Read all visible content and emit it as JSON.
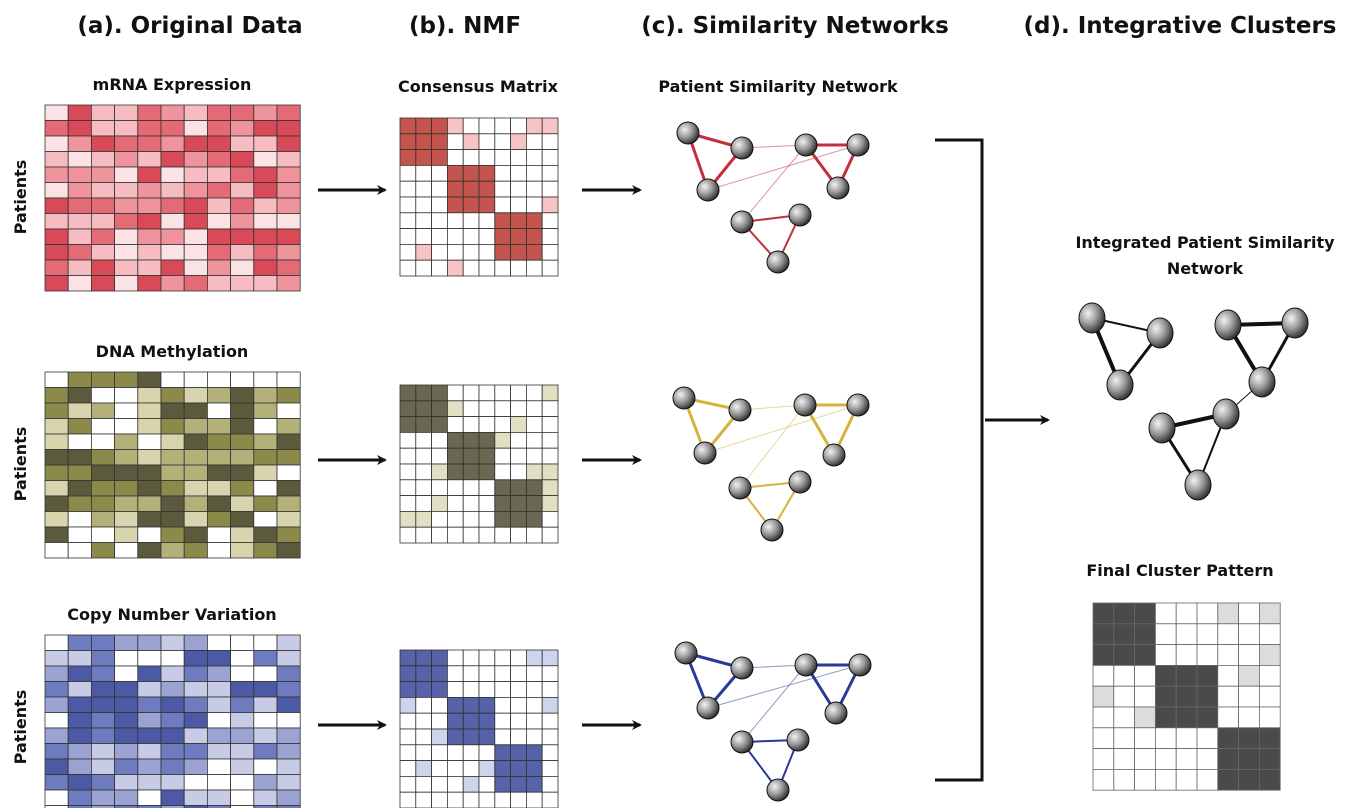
{
  "columns": [
    "(a). Original Data",
    "(b). NMF",
    "(c). Similarity Networks",
    "(d). Integrative Clusters"
  ],
  "rows": [
    {
      "label": "mRNA Expression",
      "axis": "Patients"
    },
    {
      "label": "DNA Methylation",
      "axis": "Patients"
    },
    {
      "label": "Copy Number Variation",
      "axis": "Patients"
    }
  ],
  "consensus_label": "Consensus Matrix",
  "network_label": "Patient Similarity Network",
  "integrated_label": [
    "Integrated Patient Similarity",
    "Network"
  ],
  "final_label": "Final Cluster Pattern"
}
